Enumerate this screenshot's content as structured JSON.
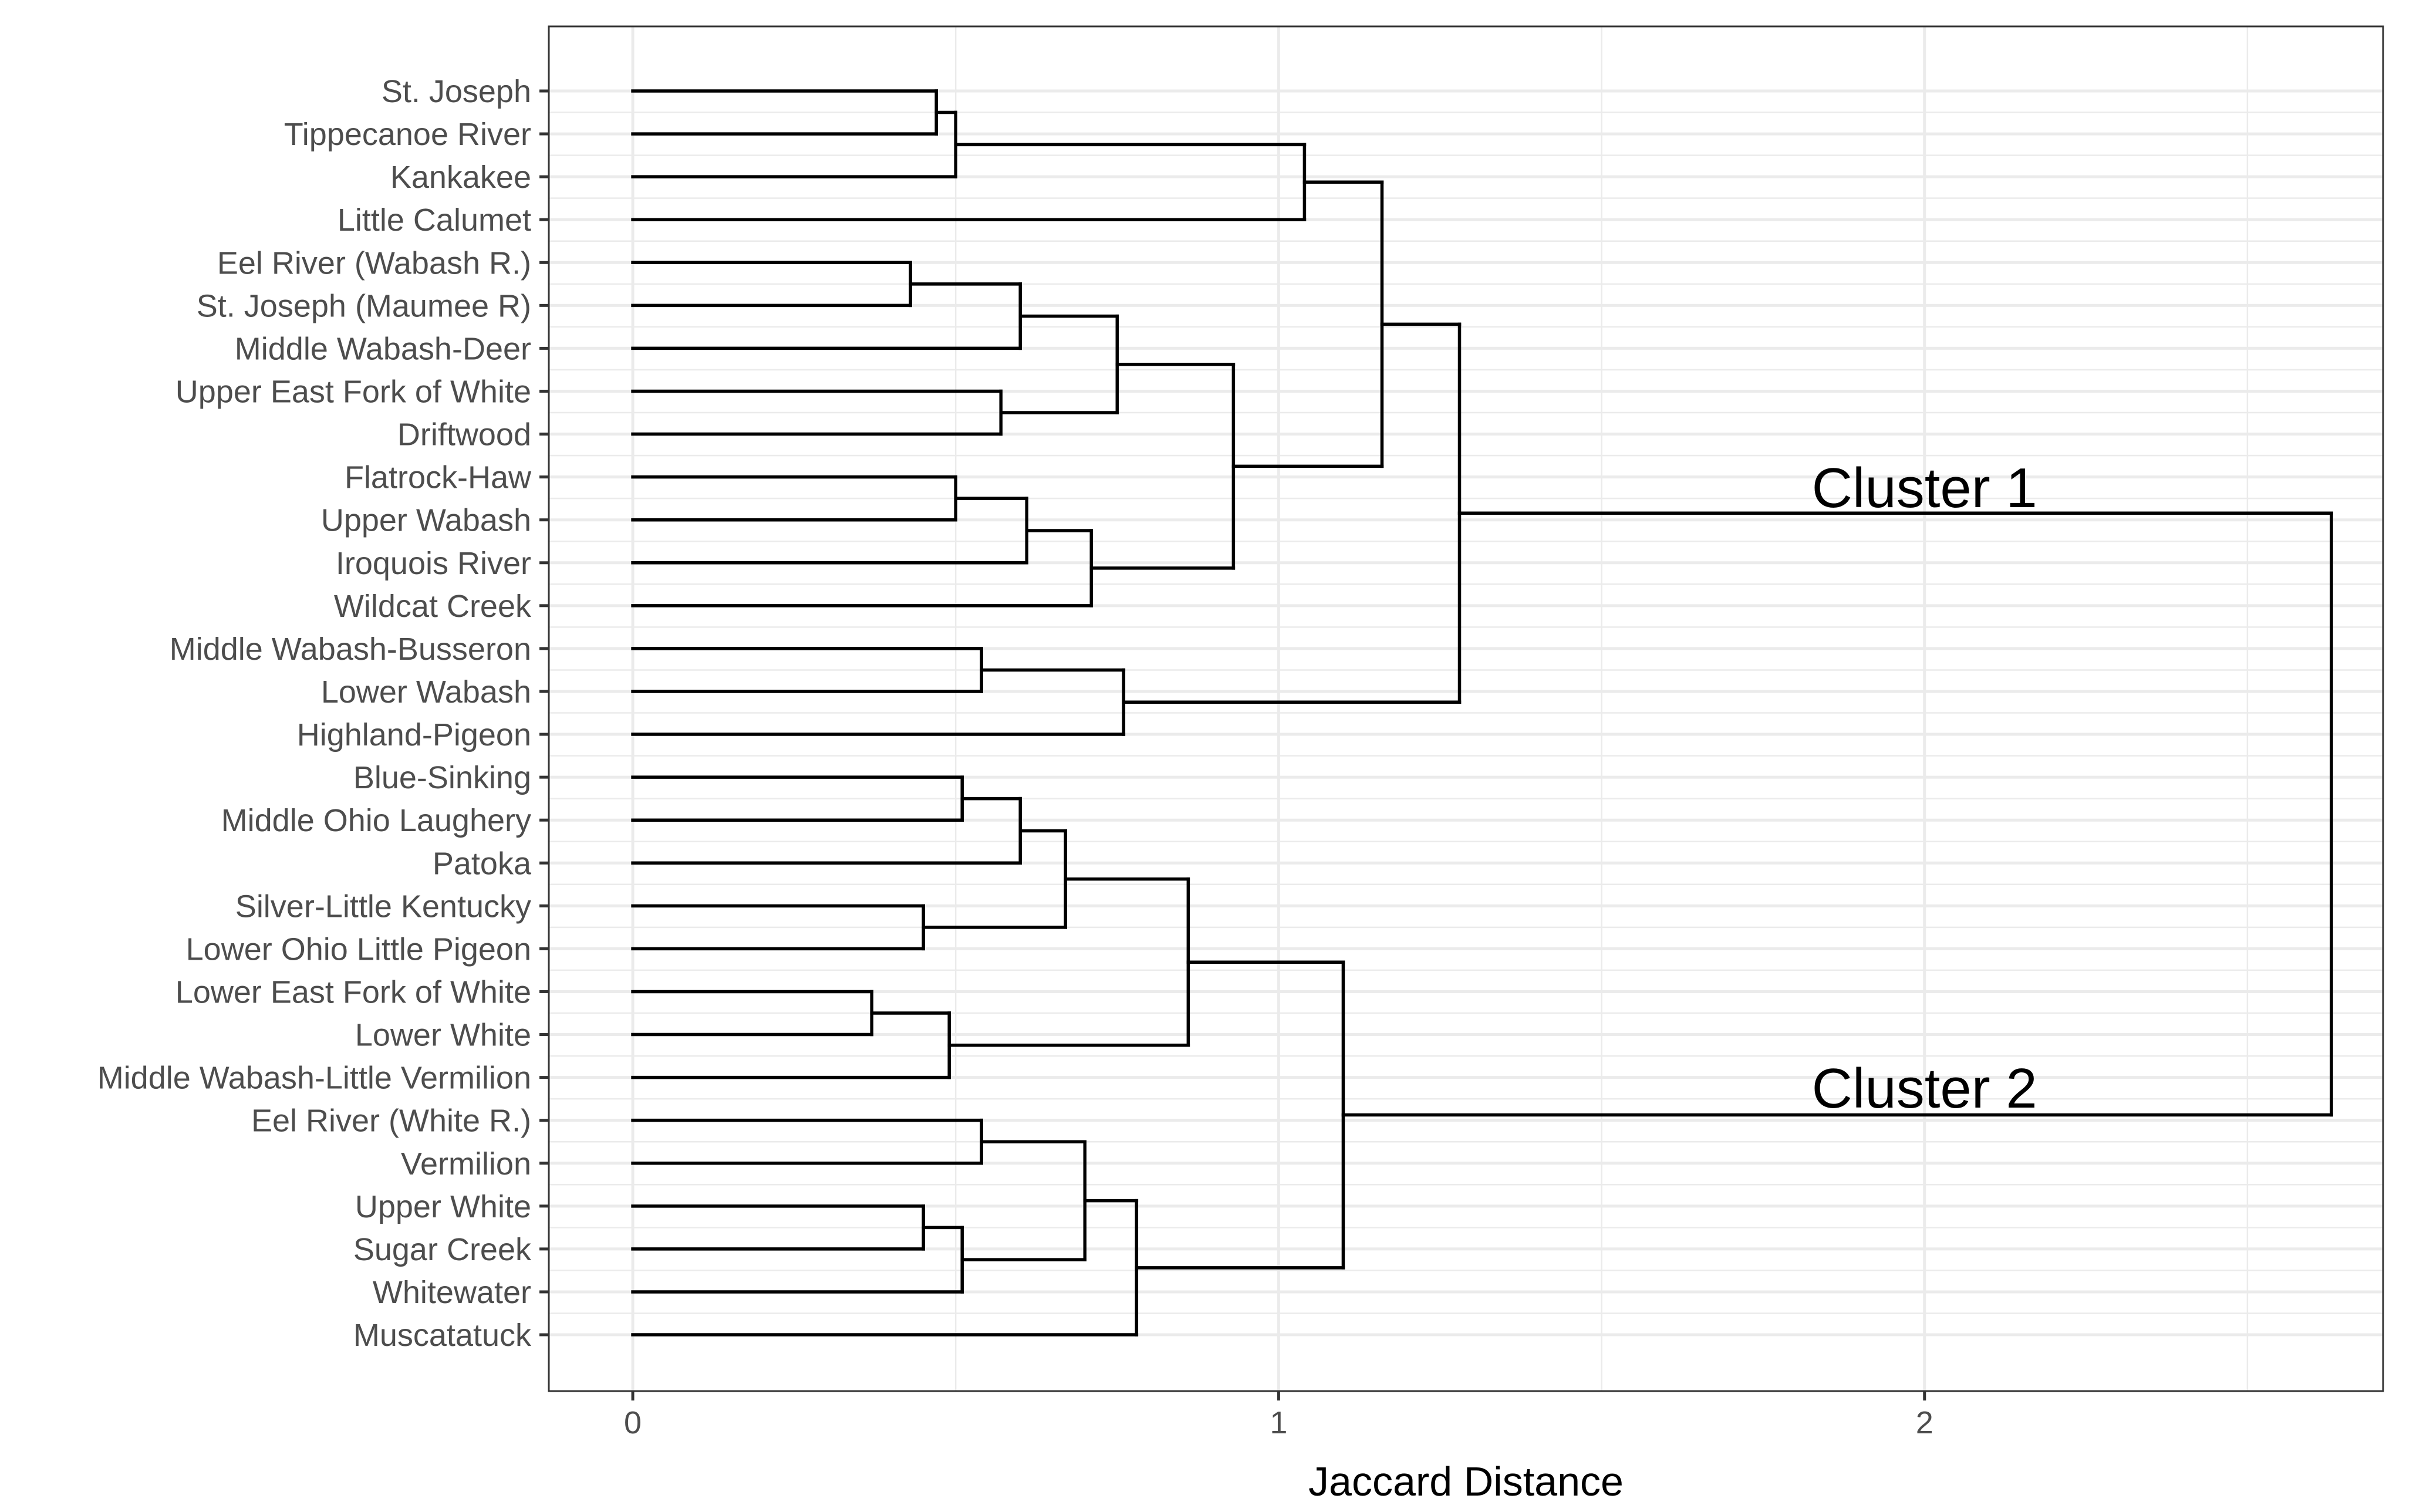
{
  "chart_data": {
    "type": "dendrogram",
    "orientation": "horizontal",
    "xlabel": "Jaccard Distance",
    "ylabel": "",
    "xlim": [
      -0.13,
      2.71
    ],
    "xticks": [
      0,
      1,
      2
    ],
    "grid": true,
    "leaves": [
      "St. Joseph",
      "Tippecanoe River",
      "Kankakee",
      "Little Calumet",
      "Eel River (Wabash R.)",
      "St. Joseph (Maumee R)",
      "Middle Wabash-Deer",
      "Upper East Fork of White",
      "Driftwood",
      "Flatrock-Haw",
      "Upper Wabash",
      "Iroquois River",
      "Wildcat Creek",
      "Middle Wabash-Busseron",
      "Lower Wabash",
      "Highland-Pigeon",
      "Blue-Sinking",
      "Middle Ohio Laughery",
      "Patoka",
      "Silver-Little Kentucky",
      "Lower Ohio Little Pigeon",
      "Lower East Fork of White",
      "Lower White",
      "Middle Wabash-Little Vermilion",
      "Eel River (White R.)",
      "Vermilion",
      "Upper White",
      "Sugar Creek",
      "Whitewater",
      "Muscatatuck"
    ],
    "merges": [
      {
        "id": "m1",
        "left": 0,
        "right": 1,
        "height": 0.47
      },
      {
        "id": "m2",
        "left": "m1",
        "right": 2,
        "height": 0.5
      },
      {
        "id": "m3",
        "left": "m2",
        "right": 3,
        "height": 1.04
      },
      {
        "id": "m4",
        "left": 4,
        "right": 5,
        "height": 0.43
      },
      {
        "id": "m5",
        "left": "m4",
        "right": 6,
        "height": 0.6
      },
      {
        "id": "m6",
        "left": 7,
        "right": 8,
        "height": 0.57
      },
      {
        "id": "m7",
        "left": "m5",
        "right": "m6",
        "height": 0.75
      },
      {
        "id": "m8",
        "left": 9,
        "right": 10,
        "height": 0.5
      },
      {
        "id": "m9",
        "left": "m8",
        "right": 11,
        "height": 0.61
      },
      {
        "id": "m10",
        "left": "m9",
        "right": 12,
        "height": 0.71
      },
      {
        "id": "m11",
        "left": "m7",
        "right": "m10",
        "height": 0.93
      },
      {
        "id": "m12",
        "left": "m3",
        "right": "m11",
        "height": 1.16
      },
      {
        "id": "m13",
        "left": 13,
        "right": 14,
        "height": 0.54
      },
      {
        "id": "m14",
        "left": "m13",
        "right": 15,
        "height": 0.76
      },
      {
        "id": "m15",
        "left": "m12",
        "right": "m14",
        "height": 1.28
      },
      {
        "id": "m16",
        "left": 16,
        "right": 17,
        "height": 0.51
      },
      {
        "id": "m17",
        "left": "m16",
        "right": 18,
        "height": 0.6
      },
      {
        "id": "m18",
        "left": 19,
        "right": 20,
        "height": 0.45
      },
      {
        "id": "m19",
        "left": "m17",
        "right": "m18",
        "height": 0.67
      },
      {
        "id": "m20",
        "left": 21,
        "right": 22,
        "height": 0.37
      },
      {
        "id": "m21",
        "left": "m20",
        "right": 23,
        "height": 0.49
      },
      {
        "id": "m22",
        "left": "m19",
        "right": "m21",
        "height": 0.86
      },
      {
        "id": "m23",
        "left": 24,
        "right": 25,
        "height": 0.54
      },
      {
        "id": "m24",
        "left": 26,
        "right": 27,
        "height": 0.45
      },
      {
        "id": "m25",
        "left": "m24",
        "right": 28,
        "height": 0.51
      },
      {
        "id": "m26",
        "left": "m23",
        "right": "m25",
        "height": 0.7
      },
      {
        "id": "m27",
        "left": "m26",
        "right": 29,
        "height": 0.78
      },
      {
        "id": "m28",
        "left": "m22",
        "right": "m27",
        "height": 1.1
      },
      {
        "id": "m29",
        "left": "m15",
        "right": "m28",
        "height": 2.63
      }
    ],
    "annotations": [
      {
        "text": "Cluster 1",
        "x": 2.0,
        "leaf_position": 9.7
      },
      {
        "text": "Cluster 2",
        "x": 2.0,
        "leaf_position": 23.7
      }
    ]
  }
}
